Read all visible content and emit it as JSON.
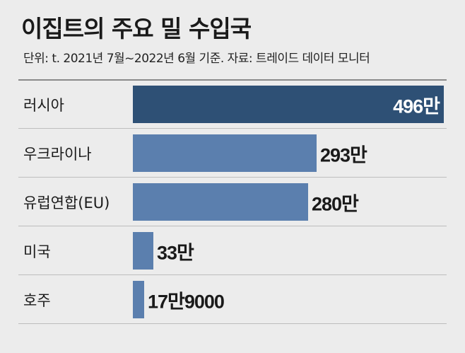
{
  "chart_data": {
    "type": "bar",
    "orientation": "horizontal",
    "title": "이집트의 주요 밀 수입국",
    "subtitle": "단위: t. 2021년 7월~2022년 6월 기준. 자료: 트레이드 데이터 모니터",
    "categories": [
      "러시아",
      "우크라이나",
      "유럽연합(EU)",
      "미국",
      "호주"
    ],
    "values": [
      4960000,
      2930000,
      2800000,
      330000,
      179000
    ],
    "value_labels": [
      "496만",
      "293만",
      "280만",
      "33만",
      "17만9000"
    ],
    "colors": {
      "highlight": "#2e5075",
      "bar": "#5b7fae"
    },
    "grid": false,
    "legend": "none"
  }
}
